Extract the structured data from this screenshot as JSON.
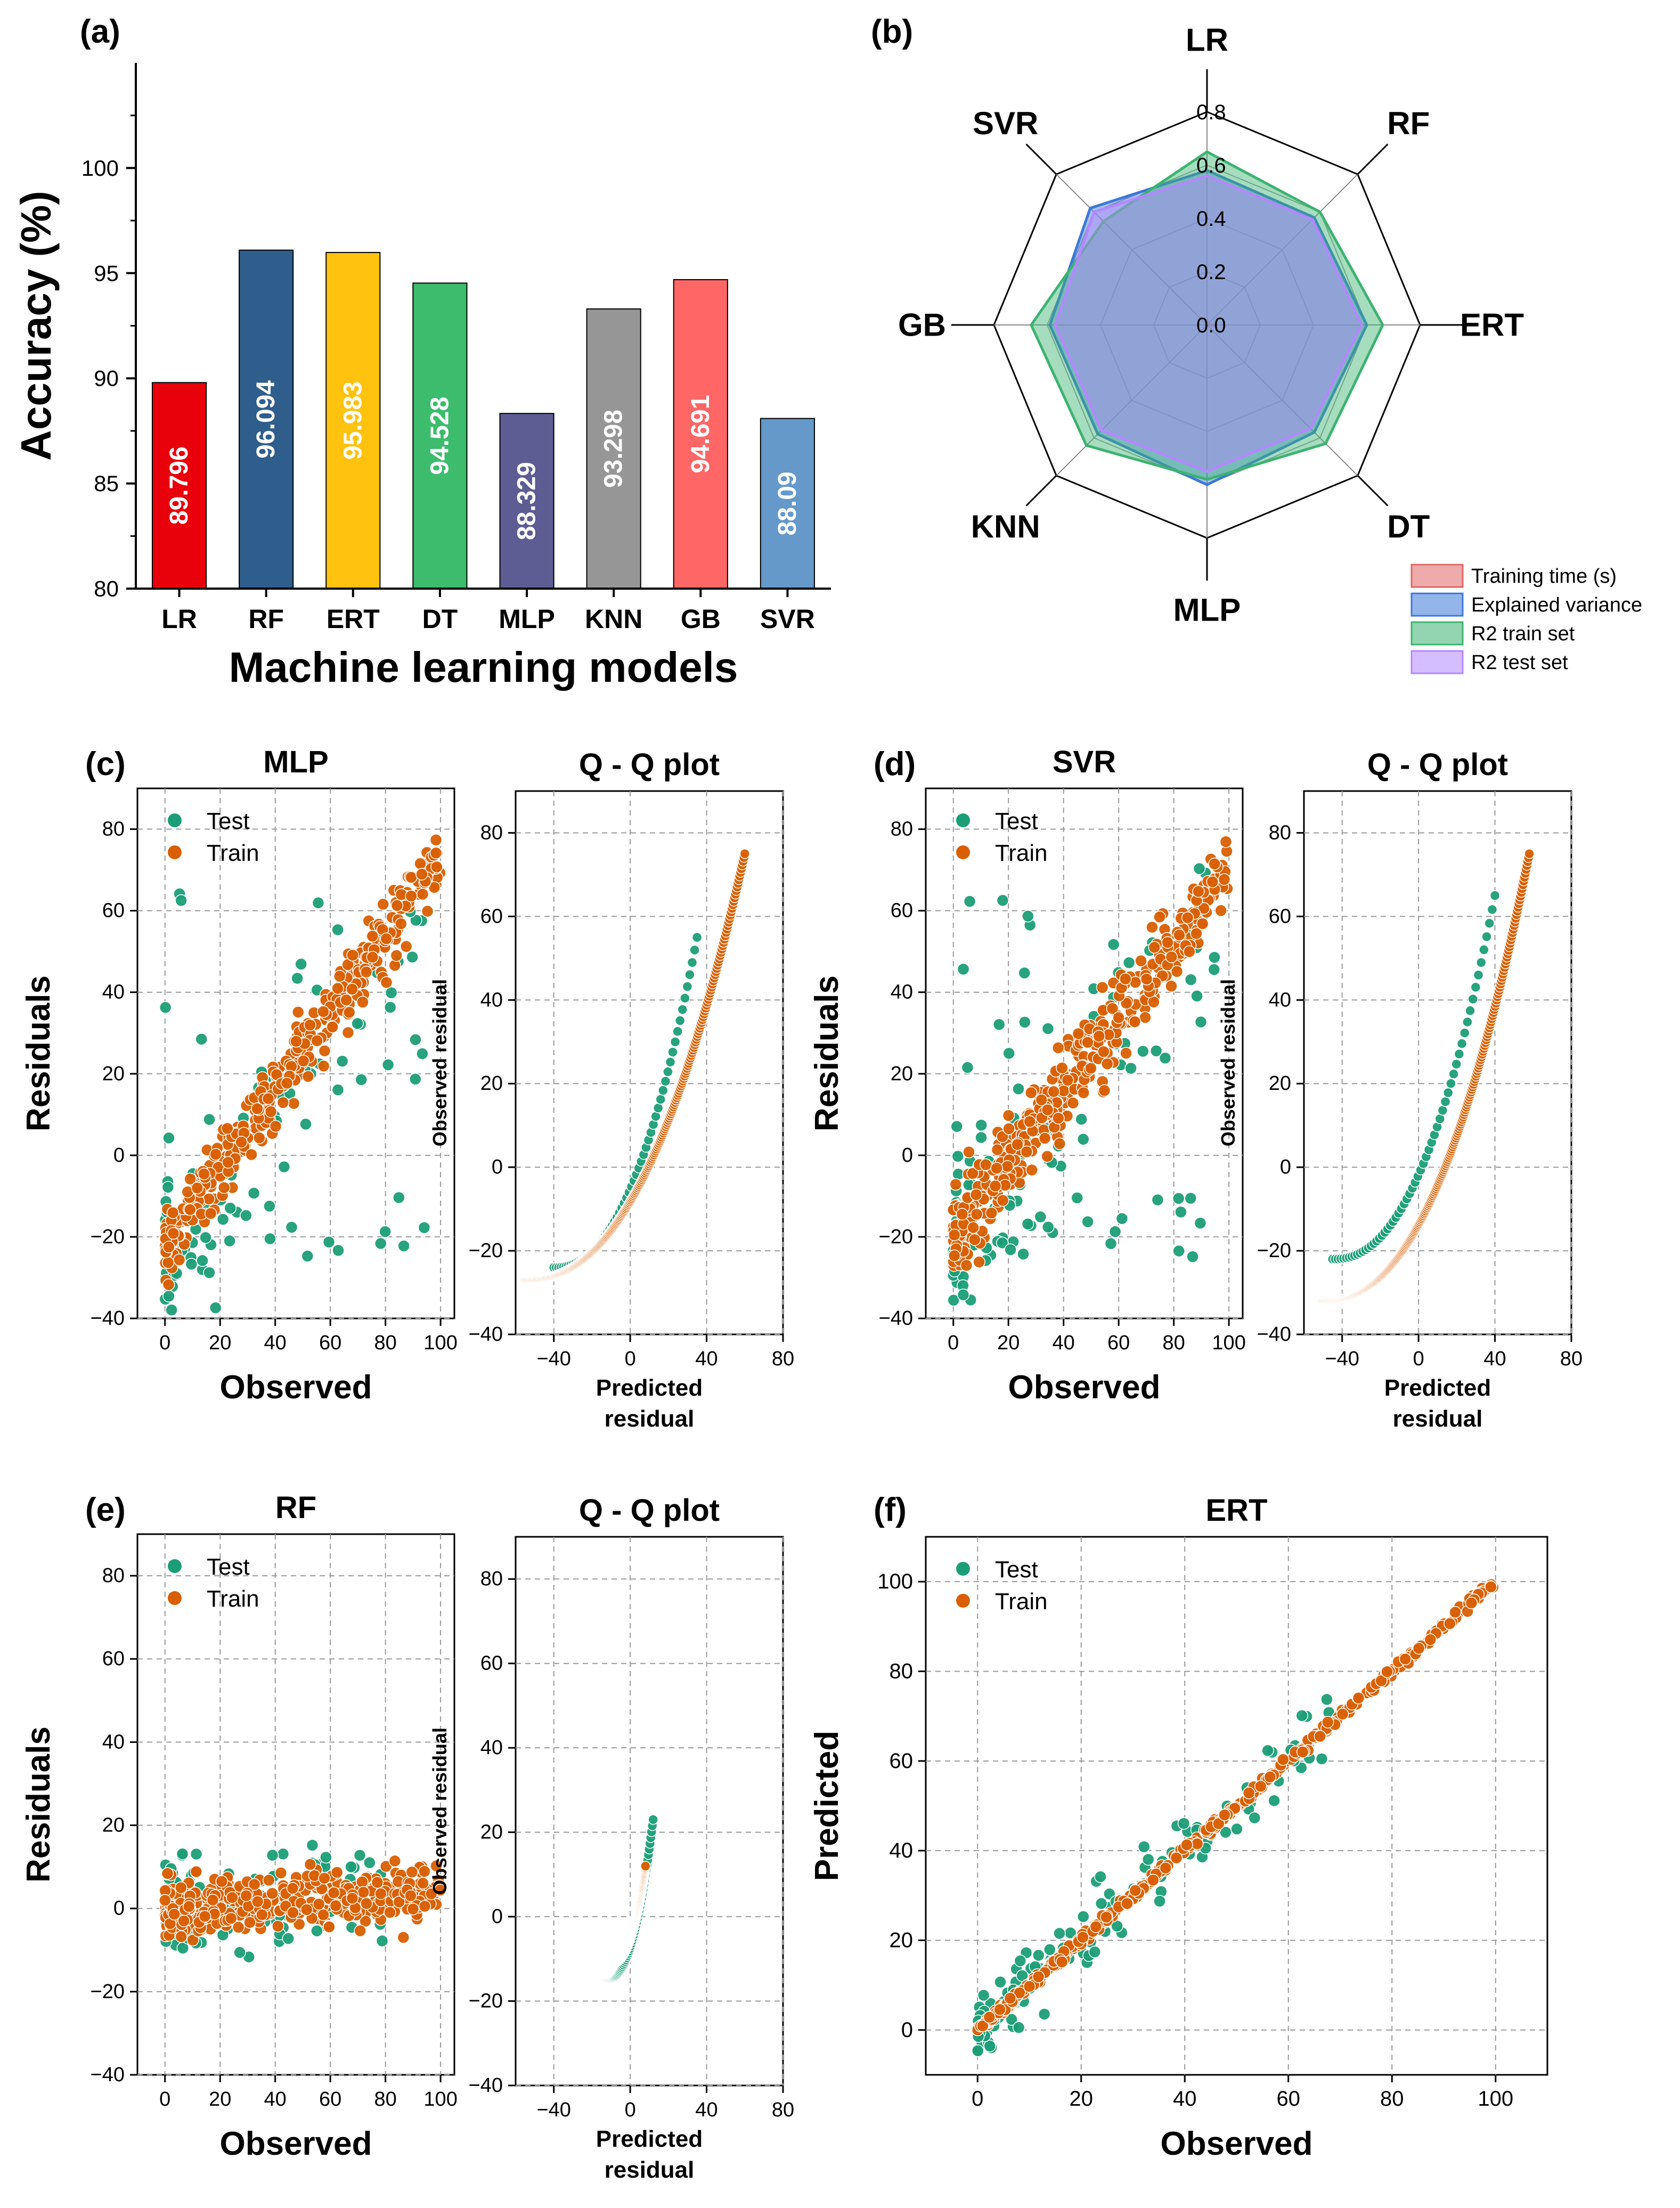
{
  "chart_data": [
    {
      "id": "a",
      "panel_label": "(a)",
      "type": "bar",
      "xlabel": "Machine learning models",
      "ylabel": "Accuracy (%)",
      "ylim": [
        80,
        105
      ],
      "yticks": [
        "80",
        "85",
        "90",
        "95",
        "100"
      ],
      "categories": [
        "LR",
        "RF",
        "ERT",
        "DT",
        "MLP",
        "KNN",
        "GB",
        "SVR"
      ],
      "values": [
        89.796,
        96.094,
        95.983,
        94.528,
        88.329,
        93.298,
        94.691,
        88.09
      ],
      "value_labels": [
        "89.796",
        "96.094",
        "95.983",
        "94.528",
        "88.329",
        "93.298",
        "94.691",
        "88.09"
      ],
      "colors": [
        "#e8000b",
        "#2f5d8c",
        "#ffc20e",
        "#3cbc6c",
        "#5d5d93",
        "#969696",
        "#ff6666",
        "#6499c9"
      ]
    },
    {
      "id": "b",
      "panel_label": "(b)",
      "type": "radar",
      "axes": [
        "LR",
        "RF",
        "ERT",
        "DT",
        "MLP",
        "KNN",
        "GB",
        "SVR"
      ],
      "rlim": [
        0,
        0.8
      ],
      "rticks": [
        "0.0",
        "0.2",
        "0.4",
        "0.6",
        "0.8"
      ],
      "series": [
        {
          "name": "Training time (s)",
          "color": "#e06666",
          "values": [
            0.02,
            0.0,
            0.03,
            0.0,
            0.0,
            0.0,
            0.0,
            0.0
          ]
        },
        {
          "name": "Explained variance",
          "color": "#3c78d8",
          "values": [
            0.58,
            0.57,
            0.6,
            0.57,
            0.6,
            0.58,
            0.59,
            0.62
          ]
        },
        {
          "name": "R2 train set",
          "color": "#3cb371",
          "values": [
            0.65,
            0.6,
            0.66,
            0.63,
            0.58,
            0.64,
            0.66,
            0.55
          ]
        },
        {
          "name": "R2 test set",
          "color": "#b388ff",
          "values": [
            0.56,
            0.56,
            0.58,
            0.55,
            0.55,
            0.56,
            0.57,
            0.6
          ]
        }
      ]
    },
    {
      "id": "c",
      "panel_label": "(c)",
      "type": "scatter",
      "title": "MLP",
      "xlabel": "Observed",
      "ylabel": "Residuals",
      "xlim": [
        -10,
        105
      ],
      "ylim": [
        -40,
        90
      ],
      "xticks": [
        "0",
        "20",
        "40",
        "60",
        "80",
        "100"
      ],
      "yticks": [
        "−40",
        "−20",
        "0",
        "20",
        "40",
        "60",
        "80"
      ],
      "series": [
        {
          "name": "Test",
          "color": "#1b9e77",
          "generator": {
            "kind": "residual",
            "train": false,
            "n": 130,
            "seed": 11,
            "slope": 0.82,
            "intercept": -22,
            "noise": 12,
            "xmax": 95
          }
        },
        {
          "name": "Train",
          "color": "#d95f02",
          "generator": {
            "kind": "residual",
            "train": true,
            "n": 420,
            "seed": 12,
            "slope": 0.95,
            "intercept": -22,
            "noise": 6,
            "xmax": 100
          }
        }
      ]
    },
    {
      "id": "c-qq",
      "type": "qq",
      "title": "Q - Q plot",
      "xlabel": "Predicted\nresidual",
      "ylabel": "Observed residual",
      "xlim": [
        -60,
        80
      ],
      "ylim": [
        -40,
        90
      ],
      "xticks": [
        "−40",
        "0",
        "40",
        "80"
      ],
      "yticks": [
        "−40",
        "−20",
        "0",
        "20",
        "40",
        "60",
        "80"
      ],
      "series": [
        {
          "name": "Test",
          "color": "#1b9e77",
          "generator": {
            "kind": "qq",
            "n": 60,
            "seed": 13,
            "xmin": -40,
            "xmax": 35,
            "ymin": -24,
            "ymax": 55
          }
        },
        {
          "name": "Train",
          "color": "#d95f02",
          "generator": {
            "kind": "qq",
            "n": 260,
            "seed": 14,
            "xmin": -55,
            "xmax": 60,
            "ymin": -27,
            "ymax": 75
          }
        }
      ]
    },
    {
      "id": "d",
      "panel_label": "(d)",
      "type": "scatter",
      "title": "SVR",
      "xlabel": "Observed",
      "ylabel": "Residuals",
      "xlim": [
        -10,
        105
      ],
      "ylim": [
        -40,
        90
      ],
      "xticks": [
        "0",
        "20",
        "40",
        "60",
        "80",
        "100"
      ],
      "yticks": [
        "−40",
        "−20",
        "0",
        "20",
        "40",
        "60",
        "80"
      ],
      "series": [
        {
          "name": "Test",
          "color": "#1b9e77",
          "generator": {
            "kind": "residual",
            "train": false,
            "n": 140,
            "seed": 21,
            "slope": 0.8,
            "intercept": -20,
            "noise": 13,
            "xmax": 95
          }
        },
        {
          "name": "Train",
          "color": "#d95f02",
          "generator": {
            "kind": "residual",
            "train": true,
            "n": 420,
            "seed": 22,
            "slope": 0.9,
            "intercept": -20,
            "noise": 7,
            "xmax": 100
          }
        }
      ]
    },
    {
      "id": "d-qq",
      "type": "qq",
      "title": "Q - Q plot",
      "xlabel": "Predicted\nresidual",
      "ylabel": "Observed residual",
      "xlim": [
        -60,
        80
      ],
      "ylim": [
        -40,
        90
      ],
      "xticks": [
        "−40",
        "0",
        "40",
        "80"
      ],
      "yticks": [
        "−40",
        "−20",
        "0",
        "20",
        "40",
        "60",
        "80"
      ],
      "series": [
        {
          "name": "Test",
          "color": "#1b9e77",
          "generator": {
            "kind": "qq",
            "n": 60,
            "seed": 23,
            "xmin": -45,
            "xmax": 40,
            "ymin": -22,
            "ymax": 65
          }
        },
        {
          "name": "Train",
          "color": "#d95f02",
          "generator": {
            "kind": "qq",
            "n": 260,
            "seed": 24,
            "xmin": -50,
            "xmax": 58,
            "ymin": -32,
            "ymax": 75
          }
        }
      ]
    },
    {
      "id": "e",
      "panel_label": "(e)",
      "type": "scatter",
      "title": "RF",
      "xlabel": "Observed",
      "ylabel": "Residuals",
      "xlim": [
        -10,
        105
      ],
      "ylim": [
        -40,
        90
      ],
      "xticks": [
        "0",
        "20",
        "40",
        "60",
        "80",
        "100"
      ],
      "yticks": [
        "−40",
        "−20",
        "0",
        "20",
        "40",
        "60",
        "80"
      ],
      "series": [
        {
          "name": "Test",
          "color": "#1b9e77",
          "generator": {
            "kind": "band",
            "n": 130,
            "seed": 31,
            "xmax": 80,
            "spread": 6
          }
        },
        {
          "name": "Train",
          "color": "#d95f02",
          "generator": {
            "kind": "band",
            "n": 420,
            "seed": 32,
            "xmax": 100,
            "spread": 3.5
          }
        }
      ]
    },
    {
      "id": "e-qq",
      "type": "qq",
      "title": "Q - Q plot",
      "xlabel": "Predicted\nresidual",
      "ylabel": "Observed residual",
      "xlim": [
        -60,
        80
      ],
      "ylim": [
        -40,
        90
      ],
      "xticks": [
        "−40",
        "0",
        "40",
        "80"
      ],
      "yticks": [
        "−40",
        "−20",
        "0",
        "20",
        "40",
        "60",
        "80"
      ],
      "series": [
        {
          "name": "Test",
          "color": "#1b9e77",
          "generator": {
            "kind": "qq",
            "n": 60,
            "seed": 33,
            "xmin": -12,
            "xmax": 12,
            "ymin": -15,
            "ymax": 23
          }
        },
        {
          "name": "Train",
          "color": "#d95f02",
          "generator": {
            "kind": "qq",
            "n": 220,
            "seed": 34,
            "xmin": -10,
            "xmax": 8,
            "ymin": -11,
            "ymax": 12
          }
        }
      ]
    },
    {
      "id": "f",
      "panel_label": "(f)",
      "type": "scatter",
      "title": "ERT",
      "xlabel": "Observed",
      "ylabel": "Predicted",
      "xlim": [
        -10,
        110
      ],
      "ylim": [
        -10,
        110
      ],
      "xticks": [
        "0",
        "20",
        "40",
        "60",
        "80",
        "100"
      ],
      "yticks": [
        "0",
        "20",
        "40",
        "60",
        "80",
        "100"
      ],
      "series": [
        {
          "name": "Test",
          "color": "#1b9e77",
          "generator": {
            "kind": "parity",
            "train": false,
            "n": 130,
            "seed": 41,
            "xmax": 68,
            "noise": 4
          }
        },
        {
          "name": "Train",
          "color": "#d95f02",
          "generator": {
            "kind": "parity",
            "train": true,
            "n": 420,
            "seed": 42,
            "xmax": 100,
            "noise": 0.6
          }
        }
      ]
    }
  ]
}
